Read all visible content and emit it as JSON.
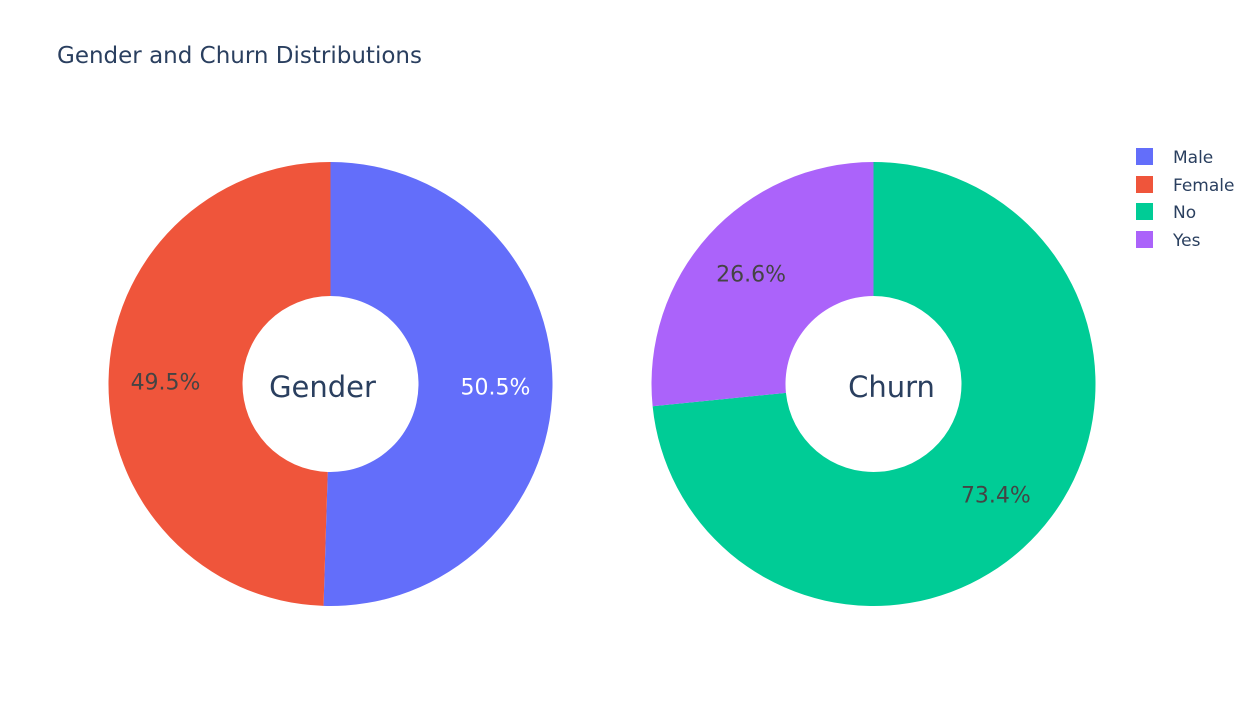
{
  "chart_data": {
    "title": "Gender and Churn Distributions",
    "legend_placement": "top-right",
    "legend": [
      {
        "label": "Male",
        "color": "#636efa"
      },
      {
        "label": "Female",
        "color": "#ef553b"
      },
      {
        "label": "No",
        "color": "#00cc96"
      },
      {
        "label": "Yes",
        "color": "#ab63fa"
      }
    ],
    "charts": [
      {
        "type": "pie",
        "hole": true,
        "center_label": "Gender",
        "slices": [
          {
            "label": "Male",
            "value": 50.5,
            "display": "50.5%",
            "color": "#636efa",
            "text_color": "#ffffff"
          },
          {
            "label": "Female",
            "value": 49.5,
            "display": "49.5%",
            "color": "#ef553b",
            "text_color": "#444444"
          }
        ]
      },
      {
        "type": "pie",
        "hole": true,
        "center_label": "Churn",
        "slices": [
          {
            "label": "No",
            "value": 73.4,
            "display": "73.4%",
            "color": "#00cc96",
            "text_color": "#444444"
          },
          {
            "label": "Yes",
            "value": 26.6,
            "display": "26.6%",
            "color": "#ab63fa",
            "text_color": "#444444"
          }
        ]
      }
    ]
  }
}
